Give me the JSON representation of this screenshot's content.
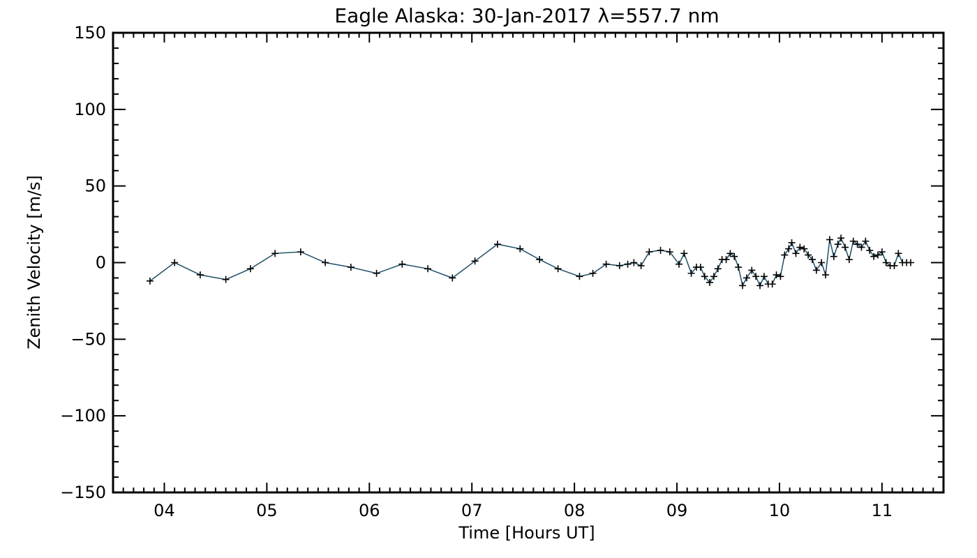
{
  "chart_data": {
    "type": "line",
    "title": "Eagle Alaska: 30-Jan-2017 λ=557.7 nm",
    "xlabel": "Time [Hours UT]",
    "ylabel": "Zenith Velocity [m/s]",
    "xlim": [
      3.5,
      11.6
    ],
    "ylim": [
      -150,
      150
    ],
    "xticks": [
      4,
      5,
      6,
      7,
      8,
      9,
      10,
      11
    ],
    "xtick_labels": [
      "04",
      "05",
      "06",
      "07",
      "08",
      "09",
      "10",
      "11"
    ],
    "yticks": [
      -150,
      -100,
      -50,
      0,
      50,
      100,
      150
    ],
    "ytick_labels": [
      "−150",
      "−100",
      "−50",
      "0",
      "50",
      "100",
      "150"
    ],
    "line_color": "#1f4e66",
    "marker_color": "#000000",
    "grid": false,
    "series": [
      {
        "x": [
          3.86,
          4.1,
          4.35,
          4.6,
          4.84,
          5.08,
          5.33,
          5.57,
          5.82,
          6.07,
          6.32,
          6.57,
          6.81,
          7.03,
          7.25,
          7.47,
          7.66,
          7.84,
          8.05,
          8.18,
          8.31,
          8.44,
          8.52,
          8.58,
          8.65,
          8.73,
          8.84,
          8.93,
          9.02,
          9.07,
          9.14,
          9.19,
          9.23,
          9.27,
          9.32,
          9.36,
          9.4,
          9.44,
          9.48,
          9.52,
          9.56,
          9.6,
          9.64,
          9.68,
          9.73,
          9.77,
          9.81,
          9.85,
          9.89,
          9.93,
          9.97,
          10.01,
          10.05,
          10.09,
          10.12,
          10.16,
          10.2,
          10.24,
          10.28,
          10.32,
          10.36,
          10.41,
          10.45,
          10.49,
          10.53,
          10.57,
          10.6,
          10.64,
          10.68,
          10.72,
          10.76,
          10.8,
          10.84,
          10.88,
          10.92,
          10.96,
          11.0,
          11.04,
          11.08,
          11.12,
          11.16,
          11.2,
          11.24,
          11.28
        ],
        "y": [
          -12,
          0,
          -8,
          -11,
          -4,
          6,
          7,
          0,
          -3,
          -7,
          -1,
          -4,
          -10,
          1,
          12,
          9,
          2,
          -4,
          -9,
          -7,
          -1,
          -2,
          -1,
          0,
          -2,
          7,
          8,
          7,
          -1,
          6,
          -7,
          -3,
          -3,
          -9,
          -13,
          -9,
          -4,
          2,
          2,
          6,
          4,
          -3,
          -15,
          -10,
          -5,
          -9,
          -15,
          -9,
          -14,
          -14,
          -8,
          -9,
          5,
          9,
          13,
          6,
          10,
          9,
          5,
          2,
          -5,
          0,
          -8,
          15,
          4,
          12,
          16,
          10,
          2,
          14,
          12,
          10,
          14,
          8,
          4,
          5,
          7,
          0,
          -2,
          -2,
          6,
          0,
          0,
          0
        ]
      }
    ]
  }
}
